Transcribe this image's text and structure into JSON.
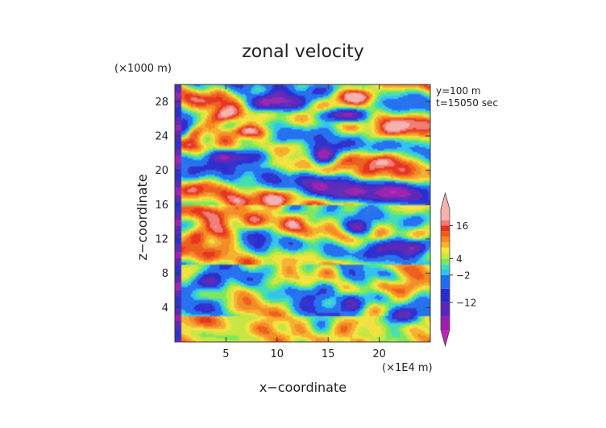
{
  "chart_data": {
    "type": "heatmap",
    "title": "zonal velocity",
    "xlabel": "x−coordinate",
    "ylabel": "z−coordinate",
    "x_unit_note": "(×1E4 m)",
    "y_unit_note": "(×1000 m)",
    "info_lines": [
      "y=100 m",
      "t=15050 sec"
    ],
    "xlim": [
      0,
      25
    ],
    "ylim": [
      0,
      30
    ],
    "x_ticks": [
      {
        "value": 5,
        "label": "5"
      },
      {
        "value": 10,
        "label": "10"
      },
      {
        "value": 15,
        "label": "15"
      },
      {
        "value": 20,
        "label": "20"
      }
    ],
    "y_ticks": [
      {
        "value": 4,
        "label": "4"
      },
      {
        "value": 8,
        "label": "8"
      },
      {
        "value": 12,
        "label": "12"
      },
      {
        "value": 16,
        "label": "16"
      },
      {
        "value": 20,
        "label": "20"
      },
      {
        "value": 24,
        "label": "24"
      },
      {
        "value": 28,
        "label": "28"
      }
    ],
    "colorbar": {
      "levels": [
        -22,
        -17,
        -12,
        -7,
        -2,
        0,
        2,
        4,
        6,
        8,
        10,
        12,
        14,
        16,
        18,
        22
      ],
      "colors": [
        "#9a1fb0",
        "#5a24b8",
        "#2a2ad0",
        "#1f6ef0",
        "#2cc3f0",
        "#3fe0b0",
        "#7ee85a",
        "#c8e83c",
        "#f5e43a",
        "#f8b02a",
        "#f68a1e",
        "#f25a18",
        "#e8301a",
        "#f47a72",
        "#f7b2ae"
      ],
      "min_arrow_color": "#c222b8",
      "max_arrow_color": "#f7b2ae",
      "labels": [
        {
          "value": 16,
          "label": "16"
        },
        {
          "value": 4,
          "label": "4"
        },
        {
          "value": -2,
          "label": "−2"
        },
        {
          "value": -12,
          "label": "−12"
        }
      ]
    },
    "features": [
      {
        "x": 1.0,
        "z": 25.0,
        "sx": 1.0,
        "sz": 1.2,
        "v": -14
      },
      {
        "x": 4.5,
        "z": 26.5,
        "sx": 2.2,
        "sz": 1.3,
        "v": 18
      },
      {
        "x": 2.0,
        "z": 24.0,
        "sx": 0.9,
        "sz": 1.2,
        "v": 18
      },
      {
        "x": 7.0,
        "z": 24.5,
        "sx": 2.5,
        "sz": 1.0,
        "v": 18
      },
      {
        "x": 6.0,
        "z": 21.5,
        "sx": 4.0,
        "sz": 1.0,
        "v": -16
      },
      {
        "x": 10.0,
        "z": 28.0,
        "sx": 3.0,
        "sz": 1.2,
        "v": -20
      },
      {
        "x": 16.5,
        "z": 26.5,
        "sx": 2.5,
        "sz": 0.9,
        "v": -20
      },
      {
        "x": 17.5,
        "z": 28.5,
        "sx": 2.5,
        "sz": 1.2,
        "v": 18
      },
      {
        "x": 22.5,
        "z": 25.0,
        "sx": 2.5,
        "sz": 1.2,
        "v": 18
      },
      {
        "x": 20.0,
        "z": 20.5,
        "sx": 3.0,
        "sz": 1.3,
        "v": 18
      },
      {
        "x": 14.5,
        "z": 22.0,
        "sx": 1.2,
        "sz": 1.5,
        "v": -18
      },
      {
        "x": 21.0,
        "z": 17.5,
        "sx": 5.0,
        "sz": 1.0,
        "v": -20
      },
      {
        "x": 15.5,
        "z": 18.0,
        "sx": 3.5,
        "sz": 1.3,
        "v": -16
      },
      {
        "x": 9.5,
        "z": 16.5,
        "sx": 2.5,
        "sz": 1.0,
        "v": 18
      },
      {
        "x": 4.0,
        "z": 13.0,
        "sx": 2.0,
        "sz": 1.5,
        "v": 18
      },
      {
        "x": 2.5,
        "z": 12.0,
        "sx": 1.0,
        "sz": 1.5,
        "v": 16
      },
      {
        "x": 8.5,
        "z": 11.5,
        "sx": 1.2,
        "sz": 1.5,
        "v": -12
      },
      {
        "x": 3.5,
        "z": 7.0,
        "sx": 2.0,
        "sz": 1.3,
        "v": -16
      },
      {
        "x": 13.5,
        "z": 5.5,
        "sx": 2.2,
        "sz": 1.5,
        "v": -16
      },
      {
        "x": 17.5,
        "z": 4.5,
        "sx": 1.5,
        "sz": 1.4,
        "v": -12
      },
      {
        "x": 22.0,
        "z": 3.0,
        "sx": 2.0,
        "sz": 1.0,
        "v": -12
      },
      {
        "x": 11.5,
        "z": 7.5,
        "sx": 3.5,
        "sz": 2.5,
        "v": 6
      },
      {
        "x": 22.0,
        "z": 11.0,
        "sx": 3.0,
        "sz": 1.2,
        "v": -18
      },
      {
        "x": 22.0,
        "z": 6.5,
        "sx": 2.5,
        "sz": 1.2,
        "v": 14
      },
      {
        "x": 5.0,
        "z": 1.8,
        "sx": 4.0,
        "sz": 0.9,
        "v": 8
      },
      {
        "x": 18.0,
        "z": 13.5,
        "sx": 1.5,
        "sz": 1.0,
        "v": -14
      }
    ]
  }
}
